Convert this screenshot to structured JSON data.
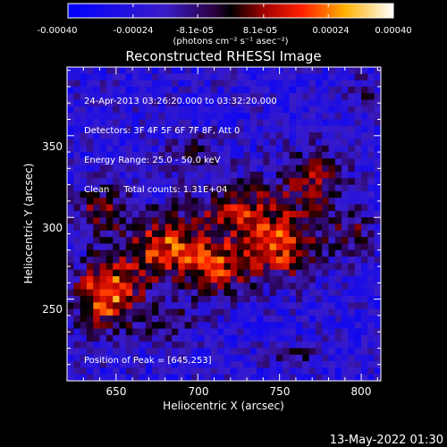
{
  "chart_data": {
    "type": "heatmap",
    "title": "Reconstructed RHESSI Image",
    "xlabel": "Heliocentric X (arcsec)",
    "ylabel": "Heliocentric Y (arcsec)",
    "xlim": [
      620,
      812
    ],
    "ylim": [
      200,
      392
    ],
    "xticks": [
      650,
      700,
      750,
      800
    ],
    "yticks": [
      250,
      300,
      350
    ],
    "colorbar": {
      "label": "(photons cm⁻² s⁻¹ asec⁻²)",
      "range": [
        -0.0004,
        0.0004
      ],
      "tick_labels_top": [
        "-0.00040",
        "-0.00024",
        "8.1e-05",
        "0.00024",
        "0.00040"
      ],
      "tick_values_top": [
        -0.0004,
        -0.00024,
        8.1e-05,
        0.00024,
        0.0004
      ],
      "tick_labels_bottom": [
        "-8.1e-05"
      ],
      "tick_values_bottom": [
        -8.1e-05
      ]
    },
    "annotations": [
      "24-Apr-2013 03:26:20.000 to 03:32:20.000",
      "Detectors: 3F 4F 5F 6F 7F 8F, Att 0",
      "Energy Range: 25.0 - 50.0 keV",
      "Clean     Total counts: 1.31E+04"
    ],
    "peak_text": "Position of Peak = [645,253]",
    "peak": [
      645,
      253
    ],
    "sources": [
      {
        "x": 645,
        "y": 253,
        "amp": 0.0004,
        "sx": 14,
        "sy": 16
      },
      {
        "x": 680,
        "y": 282,
        "amp": 0.00034,
        "sx": 16,
        "sy": 15
      },
      {
        "x": 712,
        "y": 270,
        "amp": 0.0003,
        "sx": 14,
        "sy": 13
      },
      {
        "x": 752,
        "y": 282,
        "amp": 0.00034,
        "sx": 16,
        "sy": 14
      },
      {
        "x": 725,
        "y": 305,
        "amp": 0.00026,
        "sx": 18,
        "sy": 11
      },
      {
        "x": 770,
        "y": 322,
        "amp": 0.00022,
        "sx": 15,
        "sy": 14
      },
      {
        "x": 640,
        "y": 305,
        "amp": 0.00022,
        "sx": 12,
        "sy": 10
      },
      {
        "x": 795,
        "y": 290,
        "amp": 0.00016,
        "sx": 10,
        "sy": 10
      },
      {
        "x": 682,
        "y": 235,
        "amp": 0.00014,
        "sx": 12,
        "sy": 9
      },
      {
        "x": 700,
        "y": 340,
        "amp": 0.0001,
        "sx": 14,
        "sy": 8
      },
      {
        "x": 760,
        "y": 215,
        "amp": 9e-05,
        "sx": 10,
        "sy": 7
      },
      {
        "x": 800,
        "y": 375,
        "amp": 9e-05,
        "sx": 8,
        "sy": 8
      }
    ],
    "background": -0.00022
  },
  "footer": {
    "timestamp": "13-May-2022 01:30"
  }
}
